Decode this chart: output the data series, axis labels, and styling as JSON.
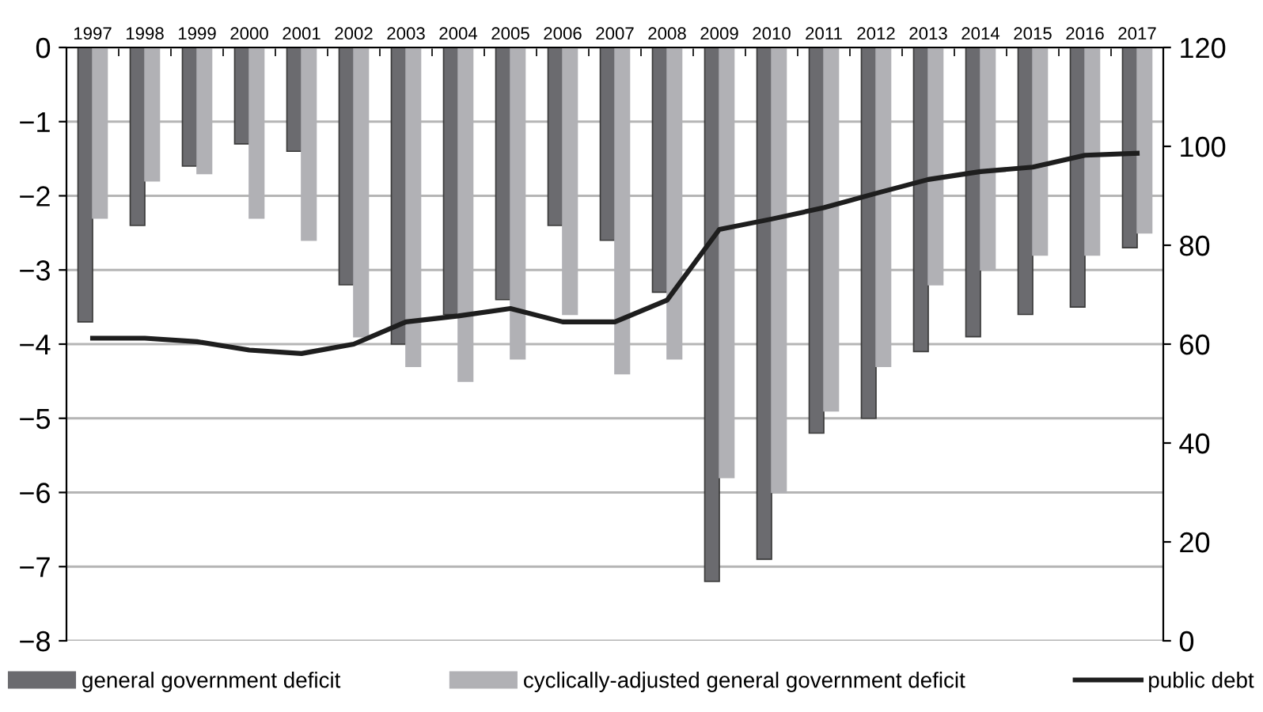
{
  "chart_data": {
    "type": "bar",
    "categories": [
      "1997",
      "1998",
      "1999",
      "2000",
      "2001",
      "2002",
      "2003",
      "2004",
      "2005",
      "2006",
      "2007",
      "2008",
      "2009",
      "2010",
      "2011",
      "2012",
      "2013",
      "2014",
      "2015",
      "2016",
      "2017"
    ],
    "series": [
      {
        "name": "general government deficit",
        "color": "#6b6b6f",
        "values": [
          -3.7,
          -2.4,
          -1.6,
          -1.3,
          -1.4,
          -3.2,
          -4.0,
          -3.6,
          -3.4,
          -2.4,
          -2.6,
          -3.3,
          -7.2,
          -6.9,
          -5.2,
          -5.0,
          -4.1,
          -3.9,
          -3.6,
          -3.5,
          -2.7
        ]
      },
      {
        "name": "cyclically-adjusted general government deficit",
        "color": "#b1b1b5",
        "values": [
          -2.3,
          -1.8,
          -1.7,
          -2.3,
          -2.6,
          -3.9,
          -4.3,
          -4.5,
          -4.2,
          -3.6,
          -4.4,
          -4.2,
          -5.8,
          -6.0,
          -4.9,
          -4.3,
          -3.2,
          -3.0,
          -2.8,
          -2.8,
          -2.5
        ]
      },
      {
        "name": "public debt",
        "type": "line",
        "axis": "y2",
        "color": "#1e1e1e",
        "values": [
          61.2,
          61.2,
          60.5,
          58.8,
          58.1,
          60.0,
          64.5,
          65.7,
          67.2,
          64.5,
          64.5,
          68.9,
          83.2,
          85.3,
          87.6,
          90.5,
          93.3,
          94.9,
          95.8,
          98.2,
          98.6
        ]
      }
    ],
    "ylim": [
      -8,
      0
    ],
    "yticks": [
      {
        "value": -8,
        "label": "−8"
      },
      {
        "value": -7,
        "label": "−7"
      },
      {
        "value": -6,
        "label": "−6"
      },
      {
        "value": -5,
        "label": "−5"
      },
      {
        "value": -4,
        "label": "−4"
      },
      {
        "value": -3,
        "label": "−3"
      },
      {
        "value": -2,
        "label": "−2"
      },
      {
        "value": -1,
        "label": "−1"
      },
      0
    ],
    "y2lim": [
      0,
      120
    ],
    "y2ticks": [
      0,
      20,
      40,
      60,
      80,
      100,
      120
    ],
    "grid": "y",
    "legend": "bottom",
    "marker": "none",
    "line_style": "solid"
  }
}
